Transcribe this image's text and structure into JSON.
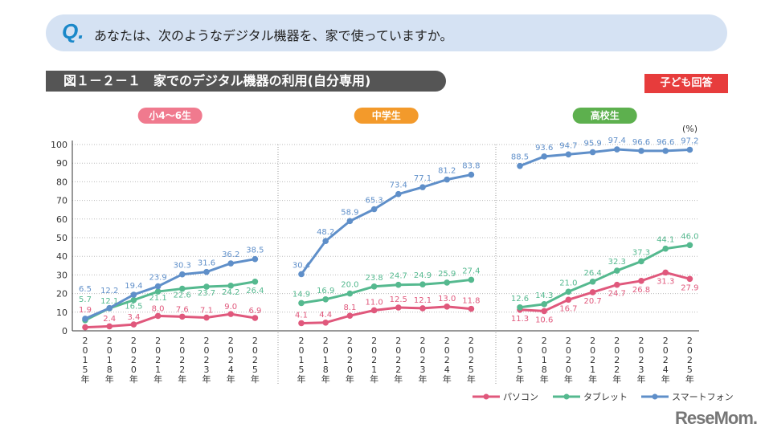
{
  "question": {
    "mark": "Q.",
    "text": "あなたは、次のようなデジタル機器を、家で使っていますか。"
  },
  "figure_title": "図１－２－１　家でのデジタル機器の利用(自分専用)",
  "badge": "子ども回答",
  "logo": "ReseMom",
  "colors": {
    "pc": "#e0587c",
    "tablet": "#55b98f",
    "smartphone": "#5f8fc9",
    "elementary": "#f07a8e",
    "middle": "#f39a2b",
    "high": "#5db04e"
  },
  "chart_data": {
    "type": "line",
    "unit": "(%)",
    "ylim": [
      0,
      100
    ],
    "yticks": [
      0,
      10,
      20,
      30,
      40,
      50,
      60,
      70,
      80,
      90,
      100
    ],
    "grid": true,
    "legend_placement": "bottom-right",
    "categories": [
      "2015年",
      "2018年",
      "2020年",
      "2021年",
      "2022年",
      "2023年",
      "2024年",
      "2025年"
    ],
    "groups": [
      {
        "name": "小4〜6生",
        "series": [
          {
            "name": "パソコン",
            "values": [
              1.9,
              2.4,
              3.4,
              8.0,
              7.6,
              7.1,
              9.0,
              6.9
            ]
          },
          {
            "name": "タブレット",
            "values": [
              5.7,
              12.1,
              16.5,
              21.1,
              22.6,
              23.7,
              24.2,
              26.4
            ]
          },
          {
            "name": "スマートフォン",
            "values": [
              6.5,
              12.2,
              19.4,
              23.9,
              30.3,
              31.6,
              36.2,
              38.5
            ]
          }
        ]
      },
      {
        "name": "中学生",
        "series": [
          {
            "name": "パソコン",
            "values": [
              4.1,
              4.4,
              8.1,
              11.0,
              12.5,
              12.1,
              13.0,
              11.8
            ]
          },
          {
            "name": "タブレット",
            "values": [
              14.9,
              16.9,
              20.0,
              23.8,
              24.7,
              24.9,
              25.9,
              27.4
            ]
          },
          {
            "name": "スマートフォン",
            "values": [
              30.4,
              48.2,
              58.9,
              65.3,
              73.4,
              77.1,
              81.2,
              83.8
            ]
          }
        ]
      },
      {
        "name": "高校生",
        "series": [
          {
            "name": "パソコン",
            "values": [
              11.3,
              10.6,
              16.7,
              20.7,
              24.7,
              26.8,
              31.3,
              27.9
            ]
          },
          {
            "name": "タブレット",
            "values": [
              12.6,
              14.3,
              21.0,
              26.4,
              32.3,
              37.3,
              44.1,
              46.0
            ]
          },
          {
            "name": "スマートフォン",
            "values": [
              88.5,
              93.6,
              94.7,
              95.9,
              97.4,
              96.6,
              96.6,
              97.2
            ]
          }
        ]
      }
    ],
    "legend": [
      "パソコン",
      "タブレット",
      "スマートフォン"
    ]
  }
}
